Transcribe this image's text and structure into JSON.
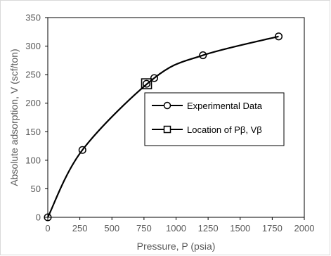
{
  "chart_data": {
    "type": "line",
    "xlabel": "Pressure, P (psia)",
    "ylabel": "Absolute adsorption, V (scf/ton)",
    "xlim": [
      0,
      2000
    ],
    "ylim": [
      0,
      350
    ],
    "xticks": [
      0,
      250,
      500,
      750,
      1000,
      1250,
      1500,
      1750,
      2000
    ],
    "yticks": [
      0,
      50,
      100,
      150,
      200,
      250,
      300,
      350
    ],
    "grid": false,
    "legend_position": "right",
    "series": [
      {
        "name": "Experimental Data",
        "marker": "circle",
        "color": "#000000",
        "x": [
          0,
          270,
          830,
          1210,
          1800
        ],
        "y": [
          0,
          118,
          244,
          284,
          317
        ]
      },
      {
        "name": "Location of Pβ, Vβ",
        "marker": "square",
        "color": "#000000",
        "x": [
          770
        ],
        "y": [
          234
        ]
      }
    ]
  }
}
